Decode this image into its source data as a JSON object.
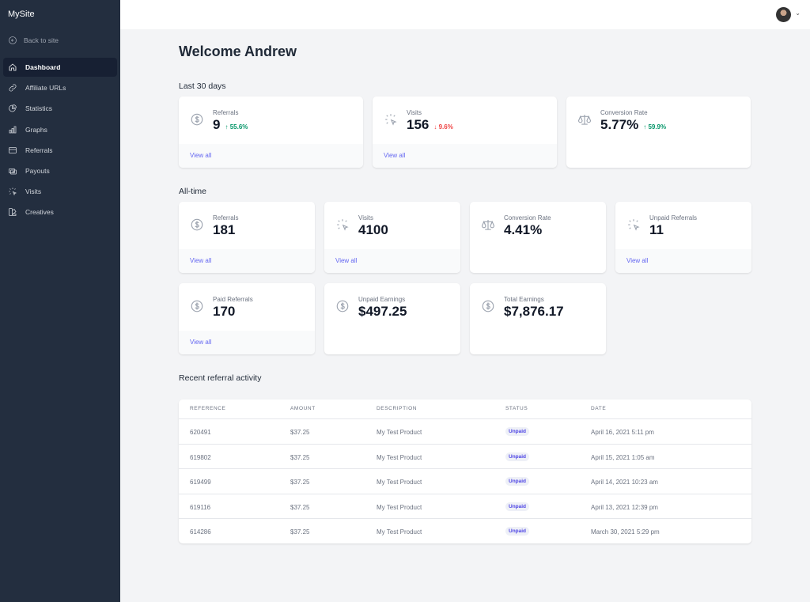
{
  "sidebar": {
    "brand": "MySite",
    "back": "Back to site",
    "items": [
      {
        "label": "Dashboard",
        "icon": "home-icon"
      },
      {
        "label": "Affiliate URLs",
        "icon": "link-icon"
      },
      {
        "label": "Statistics",
        "icon": "pie-chart-icon"
      },
      {
        "label": "Graphs",
        "icon": "bar-chart-icon"
      },
      {
        "label": "Referrals",
        "icon": "credit-card-icon"
      },
      {
        "label": "Payouts",
        "icon": "cash-icon"
      },
      {
        "label": "Visits",
        "icon": "cursor-click-icon"
      },
      {
        "label": "Creatives",
        "icon": "color-swatch-icon"
      }
    ]
  },
  "header": {
    "title": "Welcome Andrew"
  },
  "last30": {
    "title": "Last 30 days",
    "cards": [
      {
        "label": "Referrals",
        "value": "9",
        "change": "55.6%",
        "direction": "up",
        "link": "View all"
      },
      {
        "label": "Visits",
        "value": "156",
        "change": "9.6%",
        "direction": "down",
        "link": "View all"
      },
      {
        "label": "Conversion Rate",
        "value": "5.77%",
        "change": "59.9%",
        "direction": "up"
      }
    ]
  },
  "alltime": {
    "title": "All-time",
    "cards": [
      {
        "label": "Referrals",
        "value": "181",
        "link": "View all"
      },
      {
        "label": "Visits",
        "value": "4100",
        "link": "View all"
      },
      {
        "label": "Conversion Rate",
        "value": "4.41%"
      },
      {
        "label": "Unpaid Referrals",
        "value": "11",
        "link": "View all"
      },
      {
        "label": "Paid Referrals",
        "value": "170",
        "link": "View all"
      },
      {
        "label": "Unpaid Earnings",
        "value": "$497.25"
      },
      {
        "label": "Total Earnings",
        "value": "$7,876.17"
      }
    ]
  },
  "activity": {
    "title": "Recent referral activity",
    "columns": [
      "REFERENCE",
      "AMOUNT",
      "DESCRIPTION",
      "STATUS",
      "DATE"
    ],
    "rows": [
      [
        "620491",
        "$37.25",
        "My Test Product",
        "Unpaid",
        "April 16, 2021 5:11 pm"
      ],
      [
        "619802",
        "$37.25",
        "My Test Product",
        "Unpaid",
        "April 15, 2021 1:05 am"
      ],
      [
        "619499",
        "$37.25",
        "My Test Product",
        "Unpaid",
        "April 14, 2021 10:23 am"
      ],
      [
        "619116",
        "$37.25",
        "My Test Product",
        "Unpaid",
        "April 13, 2021 12:39 pm"
      ],
      [
        "614286",
        "$37.25",
        "My Test Product",
        "Unpaid",
        "March 30, 2021 5:29 pm"
      ]
    ]
  },
  "colors": {
    "sidebar": "#232e3f",
    "accent": "#6366f1",
    "up": "#059669",
    "down": "#ef4444"
  }
}
